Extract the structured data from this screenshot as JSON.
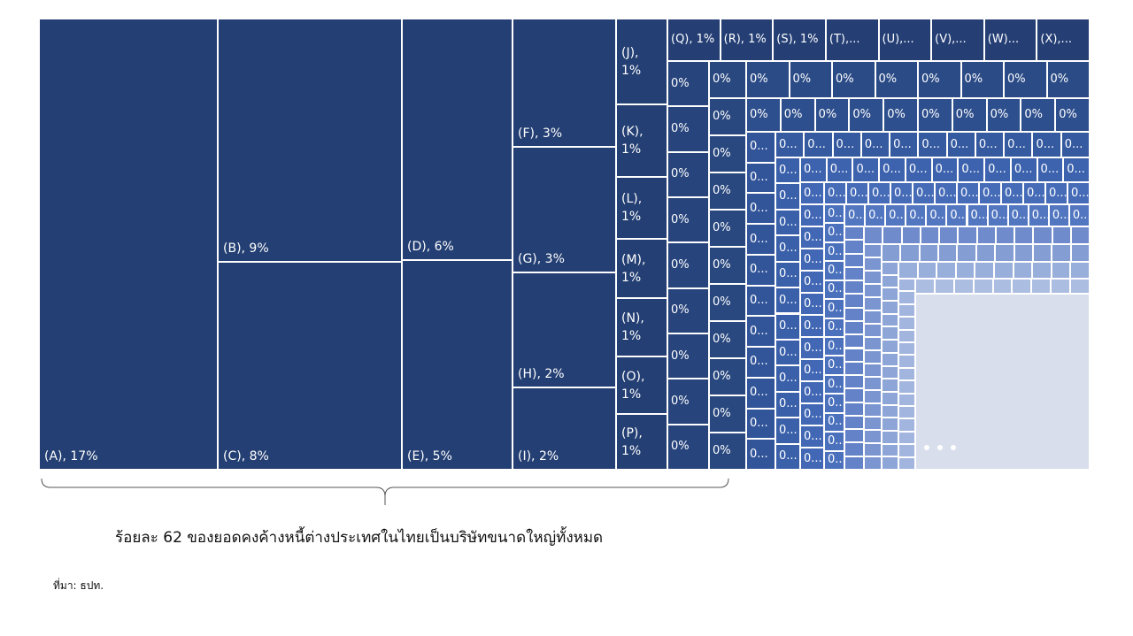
{
  "chart_data": {
    "type": "treemap",
    "main_labels": [
      "(A), 17%",
      "(B), 9%",
      "(C), 8%",
      "(D), 6%",
      "(E), 5%",
      "(F), 3%",
      "(G), 3%",
      "(H), 2%",
      "(I), 2%"
    ],
    "column_labels": [
      "(J), 1%",
      "(K), 1%",
      "(L), 1%",
      "(M), 1%",
      "(N), 1%",
      "(O), 1%",
      "(P), 1%"
    ],
    "small_groups": [
      [
        "(Q), 1%",
        "(R), 1%",
        "(S), 1%",
        "(T),...",
        "(U),...",
        "(V),...",
        "(W)...",
        "(X),..."
      ],
      [
        "0%",
        "0%",
        "0%",
        "0%",
        "0%",
        "0%",
        "0%",
        "0%",
        "0%"
      ],
      [
        "0%",
        "0%",
        "0%",
        "0%",
        "0%",
        "0%",
        "0%",
        "0%",
        "0%",
        "0%",
        "0%"
      ],
      [
        "0%",
        "0%",
        "0%",
        "0%",
        "0%",
        "0%",
        "0%",
        "0%"
      ],
      [
        "0%",
        "0%",
        "0%",
        "0%",
        "0%",
        "0%",
        "0%",
        "0%",
        "0%",
        "0%"
      ],
      [
        "0...",
        "0...",
        "0...",
        "0...",
        "0...",
        "0...",
        "0...",
        "0...",
        "0...",
        "0...",
        "0..."
      ],
      [
        "0...",
        "0...",
        "0...",
        "0...",
        "0...",
        "0...",
        "0...",
        "0...",
        "0...",
        "0...",
        "0..."
      ],
      [
        "0...",
        "0...",
        "0...",
        "0...",
        "0...",
        "0...",
        "0...",
        "0...",
        "0...",
        "0...",
        "0...",
        "0..."
      ],
      [
        "0...",
        "0...",
        "0...",
        "0...",
        "0...",
        "0...",
        "0...",
        "0...",
        "0...",
        "0...",
        "0..."
      ],
      [
        "0...",
        "0...",
        "0...",
        "0...",
        "0...",
        "0...",
        "0...",
        "0...",
        "0...",
        "0...",
        "0...",
        "0...",
        "0..."
      ],
      [
        "0...",
        "0...",
        "0...",
        "0...",
        "0...",
        "0...",
        "0...",
        "0...",
        "0...",
        "0...",
        "0...",
        "0..."
      ],
      [
        "0...",
        "0...",
        "0...",
        "0...",
        "0...",
        "0...",
        "0...",
        "0...",
        "0...",
        "0...",
        "0...",
        "0...",
        "0...",
        "0..."
      ],
      [
        "0...",
        "0...",
        "0...",
        "0...",
        "0...",
        "0...",
        "0...",
        "0...",
        "0...",
        "0...",
        "0...",
        "0..."
      ]
    ],
    "caption": "ร้อยละ 62 ของยอดคงค้างหนี้ต่างประเทศในไทยเป็นบริษัทขนาดใหญ่ทั้งหมด",
    "source": "ที่มา: ธปท."
  }
}
